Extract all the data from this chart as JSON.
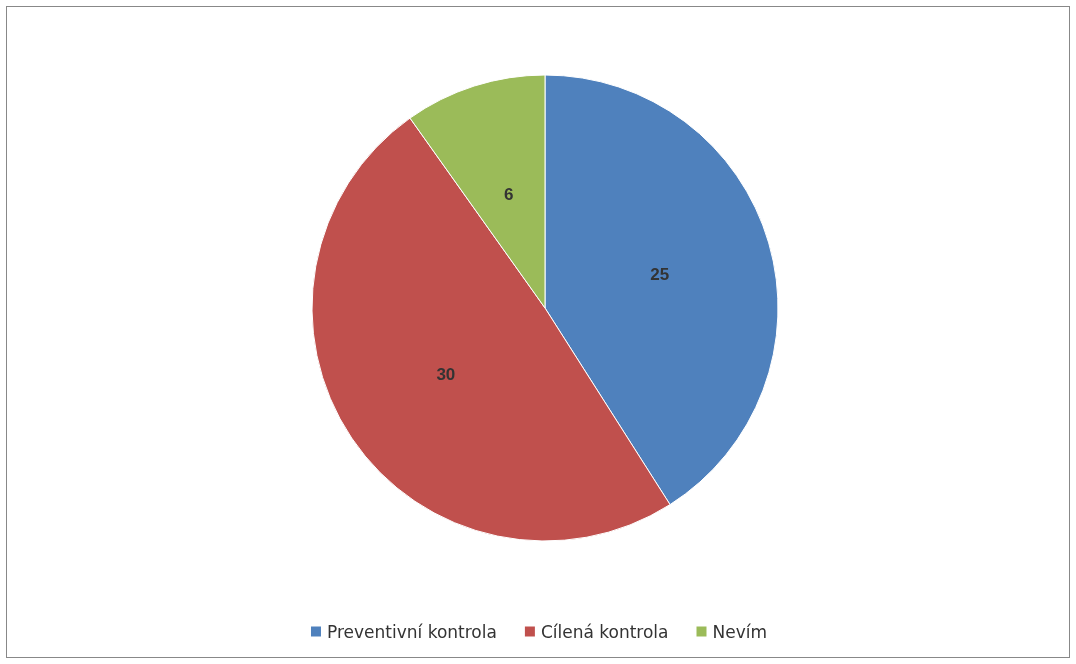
{
  "chart_data": {
    "type": "pie",
    "categories": [
      "Preventivní kontrola",
      "Cílená kontrola",
      "Nevím"
    ],
    "values": [
      25,
      30,
      6
    ],
    "colors": [
      "#4f81bd",
      "#c0504d",
      "#9bbb59"
    ],
    "data_labels": true,
    "legend": "bottom"
  }
}
